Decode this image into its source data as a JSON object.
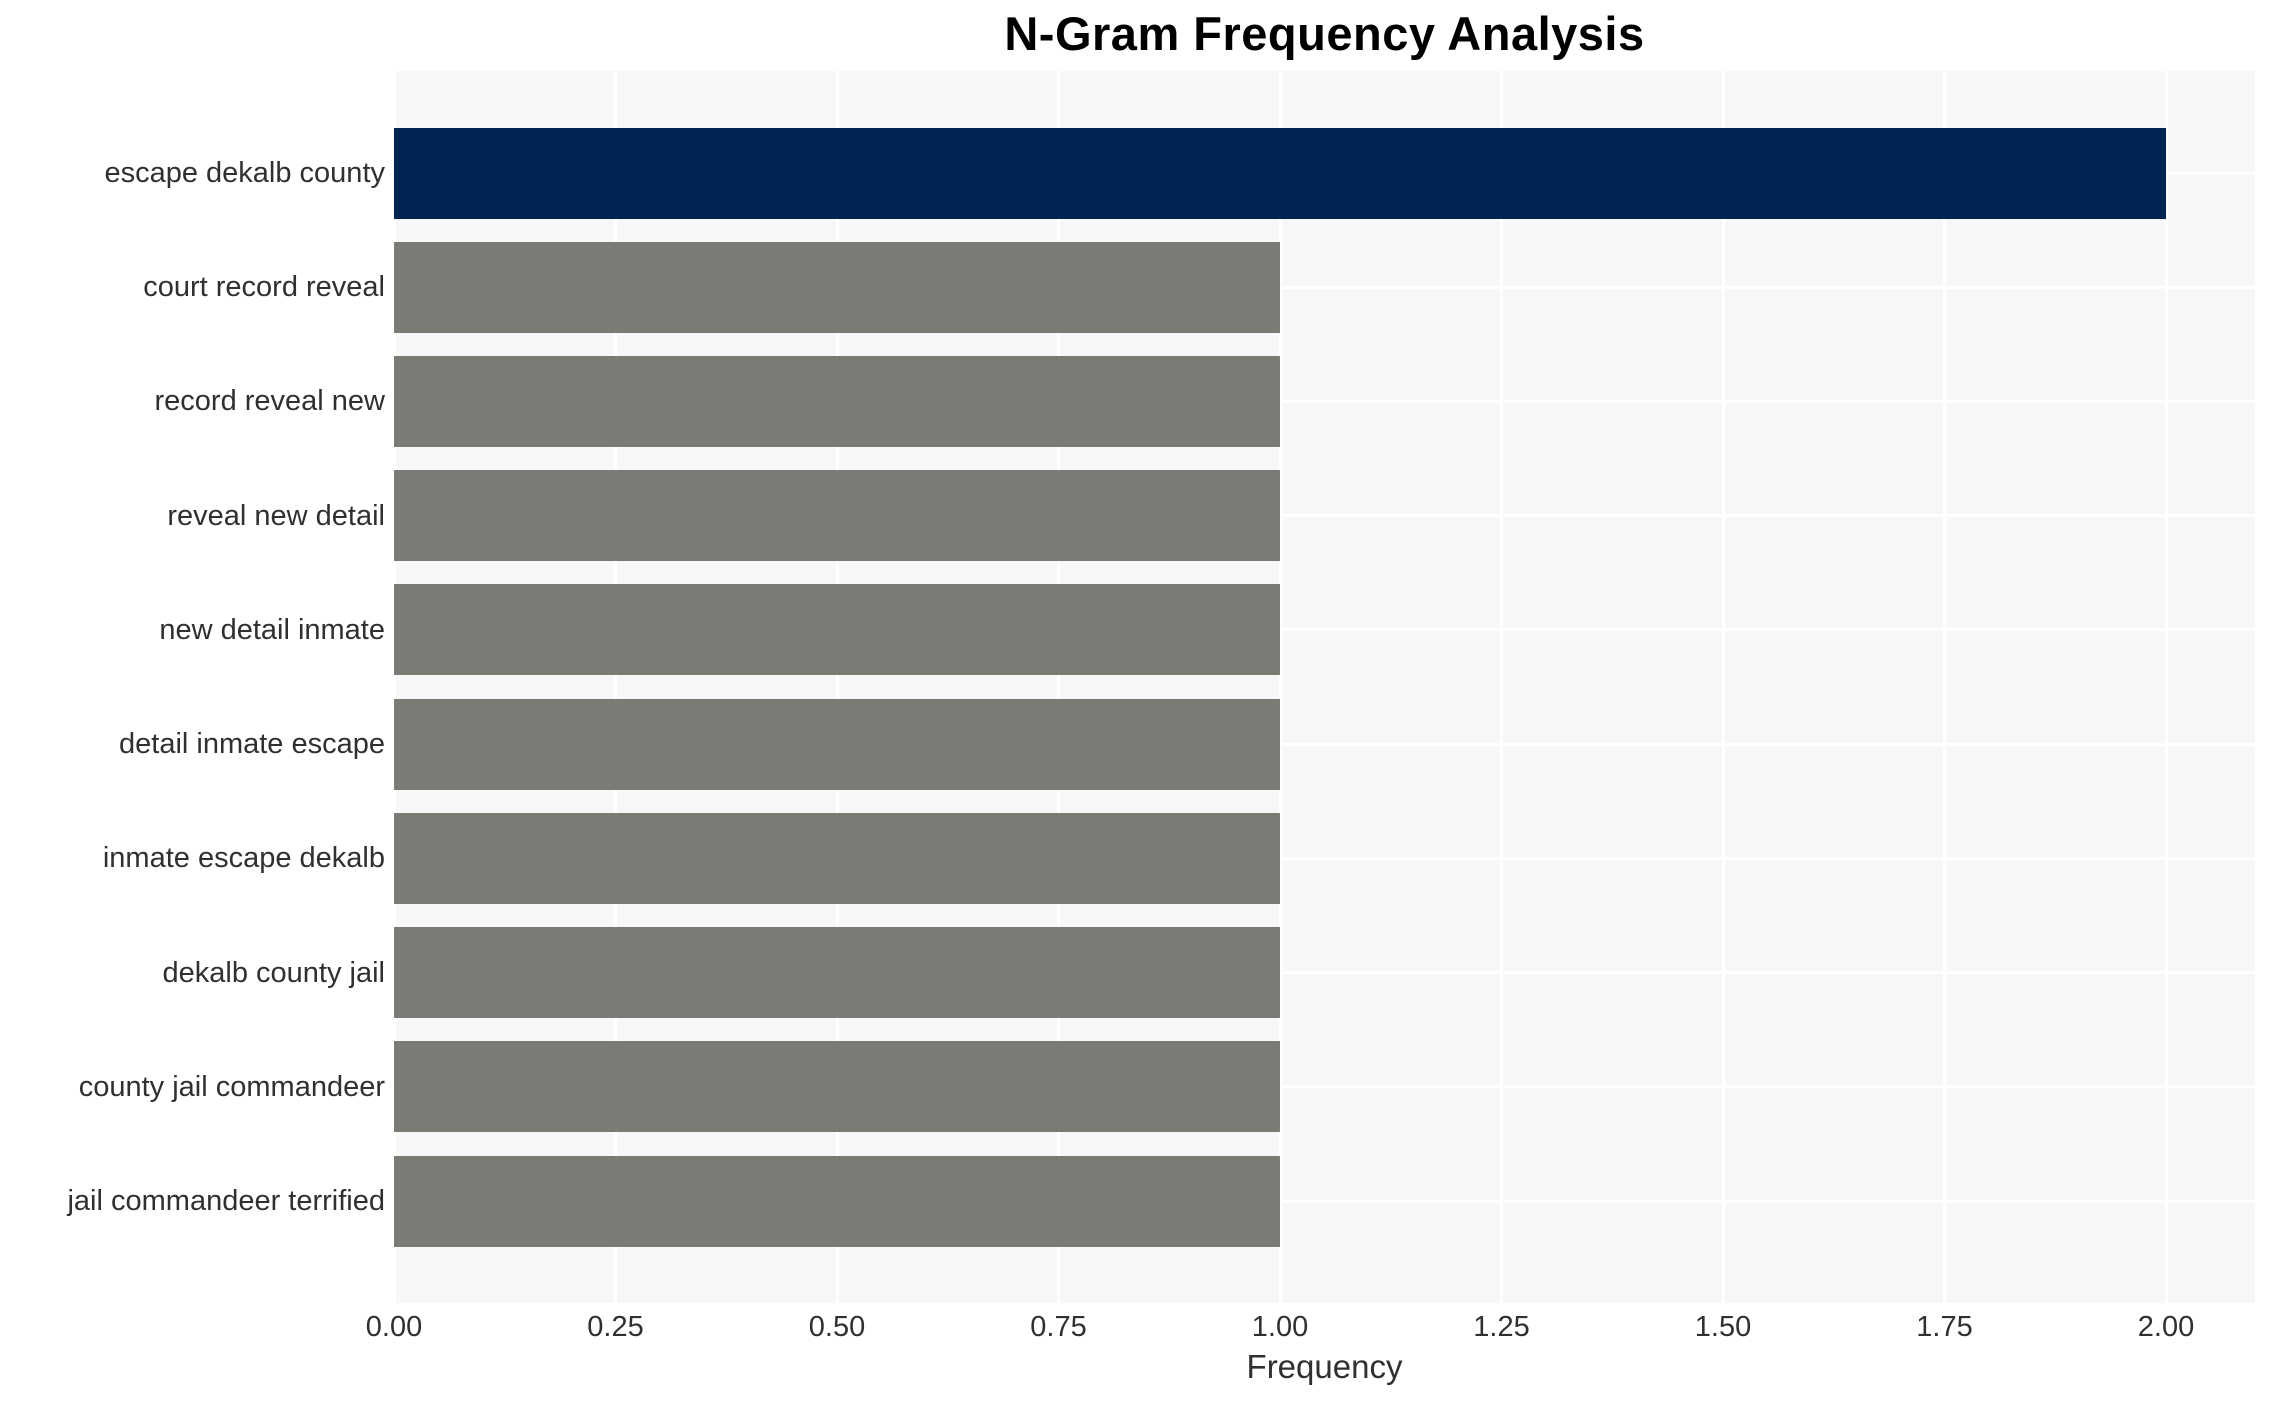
{
  "chart_data": {
    "type": "bar",
    "orientation": "horizontal",
    "title": "N-Gram Frequency Analysis",
    "xlabel": "Frequency",
    "ylabel": "",
    "categories": [
      "escape dekalb county",
      "court record reveal",
      "record reveal new",
      "reveal new detail",
      "new detail inmate",
      "detail inmate escape",
      "inmate escape dekalb",
      "dekalb county jail",
      "county jail commandeer",
      "jail commandeer terrified"
    ],
    "values": [
      2,
      1,
      1,
      1,
      1,
      1,
      1,
      1,
      1,
      1
    ],
    "xlim": [
      0,
      2.1
    ],
    "xticks": [
      {
        "value": 0,
        "label": "0.00"
      },
      {
        "value": 0.25,
        "label": "0.25"
      },
      {
        "value": 0.5,
        "label": "0.50"
      },
      {
        "value": 0.75,
        "label": "0.75"
      },
      {
        "value": 1.0,
        "label": "1.00"
      },
      {
        "value": 1.25,
        "label": "1.25"
      },
      {
        "value": 1.5,
        "label": "1.50"
      },
      {
        "value": 1.75,
        "label": "1.75"
      },
      {
        "value": 2.0,
        "label": "2.00"
      }
    ],
    "grid": true,
    "legend": false,
    "bar_colors": [
      "#002451",
      "#7b7a75",
      "#7b7a75",
      "#7b7a75",
      "#7b7a75",
      "#7b7a75",
      "#7b7a75",
      "#7b7a75",
      "#7b7a75",
      "#7b7a75"
    ],
    "colors": {
      "highlight_bar": "#002451",
      "default_bar": "#7b7a75",
      "plot_background": "#f7f7f7",
      "gridline": "#ffffff",
      "tick_text": "#303030",
      "title_text": "#000000"
    }
  }
}
